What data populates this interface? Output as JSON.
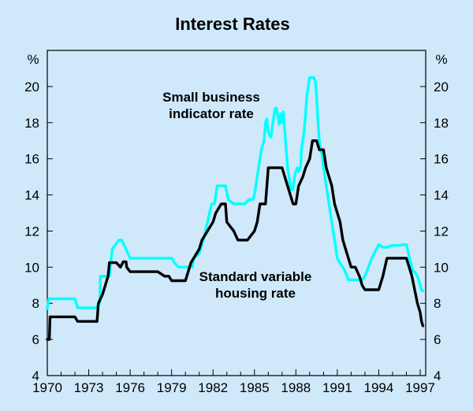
{
  "chart_data": {
    "type": "line",
    "title": "Interest Rates",
    "ylabel_left": "%",
    "ylabel_right": "%",
    "ylim": [
      4,
      22
    ],
    "y_ticks": [
      4,
      6,
      8,
      10,
      12,
      14,
      16,
      18,
      20
    ],
    "xlim": [
      1970,
      1997.4
    ],
    "x_ticks": [
      1970,
      1973,
      1976,
      1979,
      1982,
      1985,
      1988,
      1991,
      1994,
      1997
    ],
    "grid": false,
    "colors": {
      "background": "#cfe9fb",
      "small_business": "#00ffff",
      "housing": "#000000"
    },
    "annotations": [
      {
        "series": "small_business",
        "lines": [
          "Small business",
          "indicator rate"
        ]
      },
      {
        "series": "housing",
        "lines": [
          "Standard variable",
          "housing rate"
        ]
      }
    ],
    "series": [
      {
        "name": "Small business indicator rate",
        "key": "small_business",
        "x": [
          1970.0,
          1970.05,
          1970.1,
          1970.25,
          1971.5,
          1972.0,
          1972.2,
          1973.5,
          1973.8,
          1973.85,
          1974.5,
          1974.7,
          1975.2,
          1975.4,
          1976.0,
          1977.0,
          1978.0,
          1979.0,
          1979.2,
          1979.5,
          1980.5,
          1980.6,
          1981.0,
          1981.3,
          1981.6,
          1981.9,
          1982.1,
          1982.3,
          1982.9,
          1983.1,
          1983.5,
          1983.8,
          1984.0,
          1984.3,
          1984.6,
          1984.9,
          1985.0,
          1985.1,
          1985.3,
          1985.5,
          1985.7,
          1985.8,
          1985.9,
          1986.0,
          1986.1,
          1986.2,
          1986.3,
          1986.4,
          1986.5,
          1986.6,
          1986.7,
          1986.8,
          1986.9,
          1987.0,
          1987.1,
          1987.2,
          1987.3,
          1987.4,
          1987.5,
          1987.6,
          1987.7,
          1987.8,
          1987.9,
          1988.0,
          1988.1,
          1988.2,
          1988.35,
          1988.4,
          1988.5,
          1988.6,
          1988.7,
          1988.8,
          1988.9,
          1989.0,
          1989.1,
          1989.2,
          1989.3,
          1989.4,
          1989.5,
          1989.6,
          1989.7,
          1989.8,
          1989.9,
          1990.0,
          1990.1,
          1990.2,
          1990.3,
          1990.4,
          1990.5,
          1990.6,
          1990.7,
          1990.8,
          1990.9,
          1991.0,
          1991.2,
          1991.4,
          1991.6,
          1991.8,
          1992.0,
          1992.3,
          1992.6,
          1992.8,
          1993.0,
          1993.5,
          1994.0,
          1994.3,
          1994.6,
          1994.9,
          1995.2,
          1995.5,
          1995.8,
          1996.0,
          1996.2,
          1996.4,
          1996.5,
          1996.6,
          1996.8,
          1997.0,
          1997.1,
          1997.2
        ],
        "values": [
          7.7,
          8.0,
          8.25,
          8.25,
          8.25,
          8.25,
          7.75,
          7.75,
          8.0,
          9.5,
          9.5,
          11.0,
          11.5,
          11.5,
          10.5,
          10.5,
          10.5,
          10.5,
          10.25,
          10.0,
          10.0,
          10.5,
          10.75,
          11.5,
          12.5,
          13.5,
          13.5,
          14.5,
          14.5,
          13.75,
          13.5,
          13.5,
          13.5,
          13.5,
          13.75,
          13.75,
          14.0,
          14.5,
          15.5,
          16.5,
          17.0,
          18.0,
          18.2,
          17.5,
          17.3,
          17.2,
          17.8,
          18.3,
          18.8,
          18.8,
          18.3,
          17.9,
          18.5,
          18.0,
          18.6,
          17.5,
          16.5,
          15.5,
          15.0,
          14.5,
          14.3,
          14.3,
          15.0,
          15.3,
          15.5,
          15.3,
          15.6,
          16.5,
          17.0,
          17.5,
          18.5,
          19.5,
          20.0,
          20.5,
          20.5,
          20.5,
          20.5,
          20.3,
          19.5,
          18.0,
          17.0,
          16.5,
          16.2,
          15.5,
          15.0,
          14.5,
          14.0,
          13.5,
          13.0,
          12.5,
          12.0,
          11.5,
          11.0,
          10.5,
          10.2,
          10.0,
          9.7,
          9.3,
          9.3,
          9.3,
          9.3,
          9.3,
          9.5,
          10.5,
          11.25,
          11.1,
          11.1,
          11.2,
          11.2,
          11.2,
          11.25,
          11.25,
          10.6,
          10.0,
          9.75,
          9.75,
          9.5,
          9.0,
          8.7,
          8.7
        ]
      },
      {
        "name": "Standard variable housing rate",
        "key": "housing",
        "x": [
          1970.0,
          1970.15,
          1970.2,
          1971.5,
          1972.0,
          1972.2,
          1973.0,
          1973.6,
          1973.7,
          1974.0,
          1974.4,
          1974.5,
          1975.0,
          1975.3,
          1975.5,
          1975.7,
          1975.75,
          1976.0,
          1977.0,
          1977.5,
          1978.0,
          1978.5,
          1978.8,
          1979.0,
          1979.5,
          1980.0,
          1980.2,
          1980.4,
          1980.6,
          1981.0,
          1981.2,
          1981.6,
          1982.0,
          1982.2,
          1982.6,
          1982.9,
          1983.0,
          1983.5,
          1983.8,
          1984.0,
          1984.5,
          1985.0,
          1985.2,
          1985.4,
          1985.8,
          1986.0,
          1986.5,
          1987.0,
          1987.2,
          1987.4,
          1987.6,
          1987.8,
          1988.0,
          1988.2,
          1988.5,
          1988.7,
          1989.0,
          1989.2,
          1989.5,
          1989.7,
          1990.0,
          1990.2,
          1990.4,
          1990.6,
          1990.8,
          1991.0,
          1991.2,
          1991.4,
          1991.6,
          1991.8,
          1992.0,
          1992.3,
          1992.6,
          1992.8,
          1993.0,
          1993.3,
          1993.6,
          1994.0,
          1994.3,
          1994.6,
          1994.8,
          1995.2,
          1995.5,
          1995.8,
          1996.0,
          1996.2,
          1996.4,
          1996.6,
          1996.8,
          1997.0,
          1997.1,
          1997.2
        ],
        "values": [
          6.0,
          6.0,
          7.25,
          7.25,
          7.25,
          7.0,
          7.0,
          7.0,
          8.0,
          8.5,
          9.5,
          10.25,
          10.25,
          10.0,
          10.3,
          10.3,
          10.0,
          9.75,
          9.75,
          9.75,
          9.75,
          9.5,
          9.5,
          9.25,
          9.25,
          9.25,
          9.75,
          10.25,
          10.5,
          11.0,
          11.5,
          12.0,
          12.5,
          13.0,
          13.5,
          13.5,
          12.5,
          12.0,
          11.5,
          11.5,
          11.5,
          12.0,
          12.5,
          13.5,
          13.5,
          15.5,
          15.5,
          15.5,
          15.0,
          14.5,
          14.0,
          13.5,
          13.5,
          14.5,
          15.0,
          15.5,
          16.0,
          17.0,
          17.0,
          16.5,
          16.5,
          15.5,
          15.0,
          14.5,
          13.5,
          13.0,
          12.5,
          11.5,
          11.0,
          10.5,
          10.0,
          10.0,
          9.5,
          9.0,
          8.75,
          8.75,
          8.75,
          8.75,
          9.5,
          10.5,
          10.5,
          10.5,
          10.5,
          10.5,
          10.5,
          10.0,
          9.5,
          8.75,
          8.0,
          7.5,
          7.0,
          6.75
        ]
      }
    ]
  }
}
